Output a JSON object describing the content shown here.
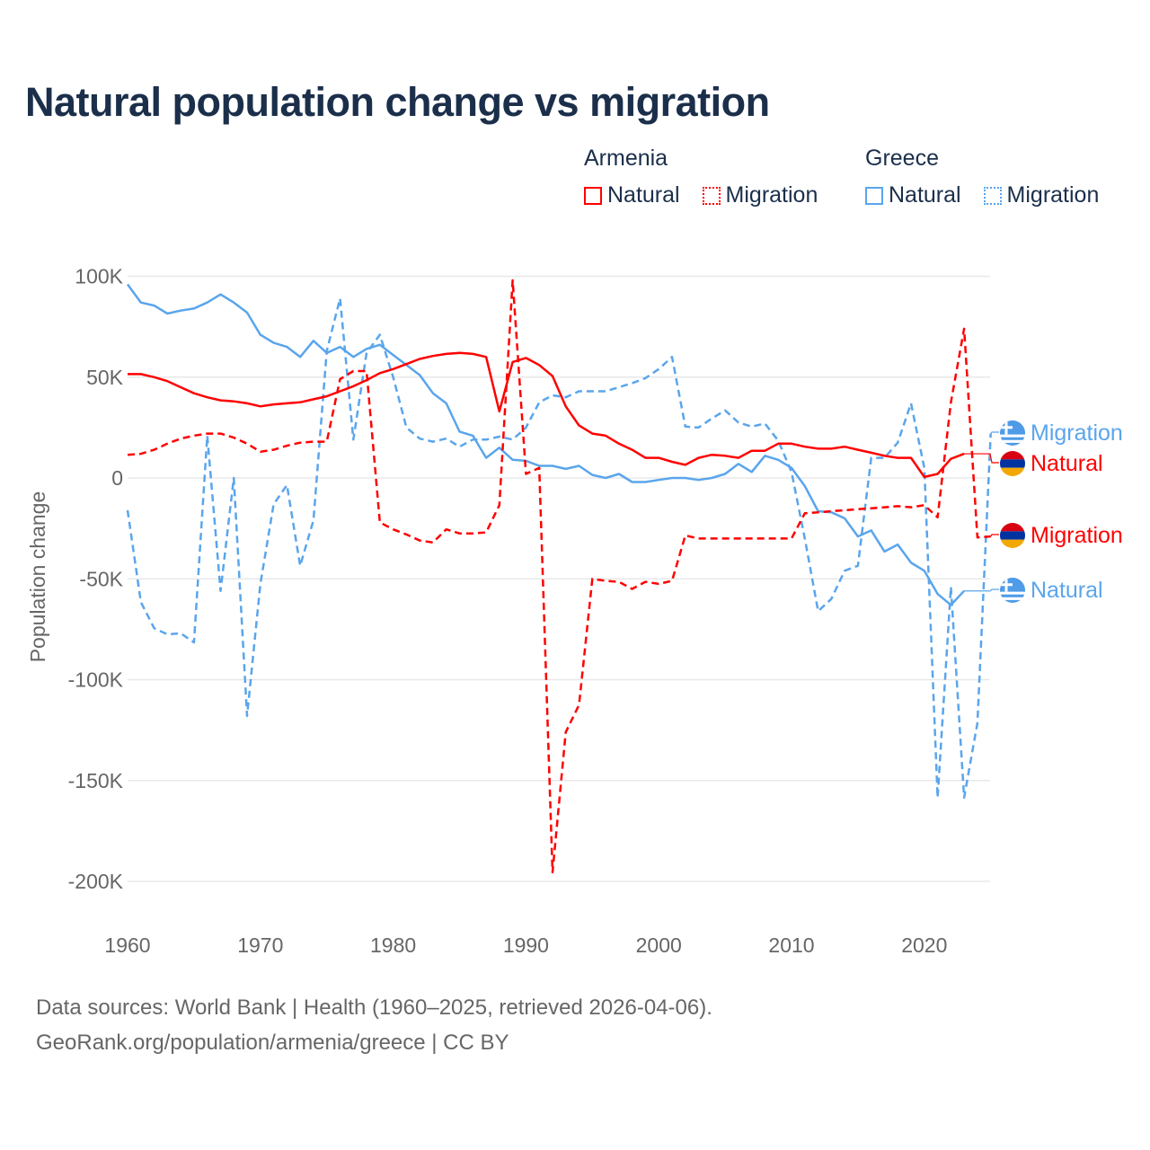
{
  "title": "Natural population change vs migration",
  "legend": {
    "groups": [
      {
        "name": "Armenia",
        "items": [
          {
            "label": "Natural",
            "style": "solid"
          },
          {
            "label": "Migration",
            "style": "dotted"
          }
        ]
      },
      {
        "name": "Greece",
        "items": [
          {
            "label": "Natural",
            "style": "solid"
          },
          {
            "label": "Migration",
            "style": "dotted"
          }
        ]
      }
    ]
  },
  "footer": {
    "line1": "Data sources: World Bank | Health (1960–2025, retrieved 2026-04-06).",
    "line2": "GeoRank.org/population/armenia/greece | CC BY"
  },
  "chart_data": {
    "type": "line",
    "title": "Natural population change vs migration",
    "xlabel": "",
    "ylabel": "Population change",
    "xlim": [
      1960,
      2025
    ],
    "ylim": [
      -200000,
      100000
    ],
    "x_ticks": [
      1960,
      1970,
      1980,
      1990,
      2000,
      2010,
      2020
    ],
    "x_tick_labels": [
      "1960",
      "1970",
      "1980",
      "1990",
      "2000",
      "2010",
      "2020"
    ],
    "y_ticks": [
      100000,
      50000,
      0,
      -50000,
      -100000,
      -150000,
      -200000
    ],
    "y_tick_labels": [
      "100K",
      "50K",
      "0",
      "-50K",
      "-100K",
      "-150K",
      "-200K"
    ],
    "grid": true,
    "legend_position": "top-right",
    "x_start": 1960,
    "series": [
      {
        "name": "Armenia Natural",
        "end_label": "Natural",
        "country": "Armenia",
        "color": "#ff0000",
        "dash": false,
        "values_k": [
          51.5,
          51.5,
          50,
          48,
          45,
          42,
          40,
          38.5,
          38,
          37,
          35.5,
          36.5,
          37,
          37.5,
          39,
          40.5,
          43,
          45.5,
          48.5,
          52,
          54,
          56.5,
          59,
          60.5,
          61.5,
          62,
          61.5,
          60,
          33,
          57.5,
          59.5,
          56,
          50.5,
          35.5,
          26,
          22,
          21,
          17,
          14,
          10,
          10,
          8,
          6.5,
          10,
          11.5,
          11,
          10,
          13.5,
          13.5,
          17,
          17,
          15.5,
          14.5,
          14.5,
          15.5,
          14,
          12.5,
          11,
          10,
          10,
          0.5,
          2,
          9.5,
          12,
          null,
          null
        ]
      },
      {
        "name": "Armenia Migration",
        "end_label": "Migration",
        "country": "Armenia",
        "color": "#ff0000",
        "dash": true,
        "values_k": [
          11.5,
          12,
          14,
          17,
          19.5,
          21,
          22,
          22,
          20,
          17,
          13,
          14,
          16,
          17.5,
          18,
          18,
          49,
          53,
          53,
          -22,
          -25.5,
          -28,
          -31,
          -32,
          -25.5,
          -27.5,
          -27.5,
          -27,
          -13.5,
          98,
          2,
          5,
          -195.5,
          -126,
          -112.5,
          -50,
          -51,
          -51.5,
          -55,
          -51.5,
          -52.5,
          -51,
          -28.5,
          -30,
          -30,
          -30,
          -30,
          -30,
          -30,
          -30,
          -30,
          -17.5,
          -17,
          -16.5,
          -16,
          -15.5,
          -15,
          -14.5,
          -14,
          -14.5,
          -13.5,
          -19.5,
          37.5,
          74,
          -29.5,
          -29
        ]
      },
      {
        "name": "Greece Natural",
        "end_label": "Natural",
        "country": "Greece",
        "color": "#5aa5ec",
        "dash": false,
        "values_k": [
          96,
          87,
          85.5,
          81.5,
          83,
          84,
          87,
          91,
          87,
          82,
          71,
          67,
          65,
          60,
          68,
          62,
          65,
          60,
          64,
          66,
          61,
          56,
          51,
          42,
          37,
          23,
          21,
          10,
          15,
          9,
          8.5,
          6,
          6,
          4.5,
          6,
          1.5,
          0,
          2,
          -2,
          -2,
          -1,
          0,
          0,
          -1,
          0,
          2,
          7,
          3,
          11,
          9,
          5,
          -4,
          -16.5,
          -17,
          -20,
          -29,
          -26,
          -36.5,
          -33,
          -42,
          -46,
          -57.5,
          -63,
          -56,
          null,
          null
        ]
      },
      {
        "name": "Greece Migration",
        "end_label": "Migration",
        "country": "Greece",
        "color": "#5aa5ec",
        "dash": true,
        "values_k": [
          -16,
          -61.5,
          -74.5,
          -77.5,
          -77,
          -81.5,
          21,
          -56,
          0,
          -118,
          -52.5,
          -13,
          -3.5,
          -43.5,
          -21,
          63,
          89,
          19,
          62,
          71,
          50,
          25,
          19.5,
          18,
          19.5,
          15.5,
          19,
          19,
          20.5,
          19,
          25,
          37.5,
          41,
          40,
          43,
          43,
          43,
          45,
          47,
          49.5,
          54,
          60,
          25.5,
          25,
          29.5,
          33.5,
          27.5,
          25.5,
          27,
          18.5,
          3,
          -30,
          -66,
          -60,
          -46,
          -43.5,
          10,
          10,
          17.5,
          37,
          5,
          -158.5,
          -54,
          -158.5,
          -121.5,
          22
        ]
      }
    ]
  }
}
